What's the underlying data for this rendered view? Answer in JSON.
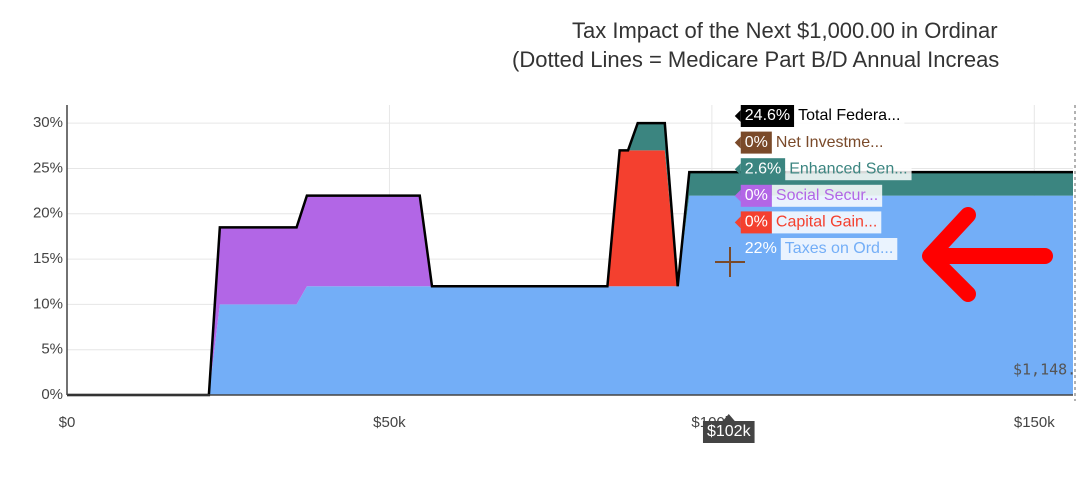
{
  "chart_data": {
    "type": "stacked_area",
    "title": "Tax Impact of the Next $1,000.00 in Ordinar",
    "subtitle": "(Dotted Lines = Medicare Part B/D Annual Increas",
    "x": [
      0,
      22,
      23.7,
      35.6,
      37.2,
      54.7,
      56.6,
      83.8,
      85.7,
      87,
      88.5,
      92.7,
      94.7,
      96.5,
      156
    ],
    "series": [
      {
        "name": "Taxes on Ord...",
        "color": "#73aef7",
        "values": [
          0,
          0,
          10,
          10,
          12,
          12,
          12,
          12,
          12,
          12,
          12,
          12,
          12,
          22,
          22
        ],
        "hover_value": 22,
        "hover_label": "22%"
      },
      {
        "name": "Capital Gain...",
        "color": "#f4402f",
        "values": [
          0,
          0,
          0,
          0,
          0,
          0,
          0,
          0,
          15,
          15,
          15,
          15,
          0,
          0,
          0
        ],
        "hover_value": 0,
        "hover_label": "0%"
      },
      {
        "name": "Social Secur...",
        "color": "#b266e6",
        "values": [
          0,
          0,
          8.5,
          8.5,
          10,
          10,
          0,
          0,
          0,
          0,
          0,
          0,
          0,
          0,
          0
        ],
        "hover_value": 0,
        "hover_label": "0%"
      },
      {
        "name": "Enhanced Sen...",
        "color": "#3b8580",
        "values": [
          0,
          0,
          0,
          0,
          0,
          0,
          0,
          0,
          0,
          0,
          3,
          3,
          0,
          2.6,
          2.6
        ],
        "hover_value": 2.6,
        "hover_label": "2.6%"
      },
      {
        "name": "Net Investme...",
        "color": "#7a4a2a",
        "values": [
          0,
          0,
          0,
          0,
          0,
          0,
          0,
          0,
          0,
          0,
          0,
          0,
          0,
          0,
          0
        ],
        "hover_value": 0,
        "hover_label": "0%"
      }
    ],
    "total": {
      "name": "Total Federa...",
      "color": "#000000",
      "values": [
        0,
        0,
        18.5,
        18.5,
        22,
        22,
        12,
        12,
        27,
        27,
        30,
        30,
        12,
        24.6,
        24.6
      ],
      "hover_value": 24.6,
      "hover_label": "24.6%"
    },
    "hover_x": 102,
    "hover_x_label": "$102k",
    "annotation": "$1,148.",
    "xlim": [
      0,
      156
    ],
    "ylim": [
      0,
      32
    ],
    "xticks": [
      {
        "value": 0,
        "label": "$0"
      },
      {
        "value": 50,
        "label": "$50k"
      },
      {
        "value": 100,
        "label": "$100k"
      },
      {
        "value": 150,
        "label": "$150k"
      }
    ],
    "yticks": [
      {
        "value": 0,
        "label": "0%"
      },
      {
        "value": 5,
        "label": "5%"
      },
      {
        "value": 10,
        "label": "10%"
      },
      {
        "value": 15,
        "label": "15%"
      },
      {
        "value": 20,
        "label": "20%"
      },
      {
        "value": 25,
        "label": "25%"
      },
      {
        "value": 30,
        "label": "30%"
      }
    ],
    "grid": true
  }
}
